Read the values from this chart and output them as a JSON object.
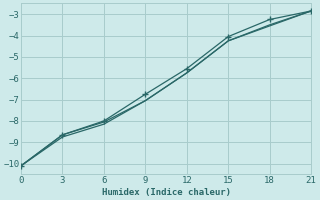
{
  "xlabel": "Humidex (Indice chaleur)",
  "background_color": "#ceeaea",
  "grid_color": "#a8cccc",
  "line_color": "#2a6868",
  "marker_color": "#2a6868",
  "xlim": [
    0,
    21
  ],
  "ylim": [
    -10.5,
    -2.5
  ],
  "xticks": [
    0,
    3,
    6,
    9,
    12,
    15,
    18,
    21
  ],
  "yticks": [
    -10,
    -9,
    -8,
    -7,
    -6,
    -5,
    -4,
    -3
  ],
  "line1_x": [
    0,
    3,
    6,
    9,
    12,
    15,
    18,
    21
  ],
  "line1_y": [
    -10.1,
    -8.65,
    -8.0,
    -6.75,
    -5.55,
    -4.05,
    -3.25,
    -2.85
  ],
  "line2_x": [
    0,
    3,
    6,
    9,
    12,
    15,
    18,
    21
  ],
  "line2_y": [
    -10.1,
    -8.75,
    -8.15,
    -7.05,
    -5.75,
    -4.25,
    -3.5,
    -2.85
  ],
  "line3_x": [
    0,
    3,
    6,
    9,
    12,
    15,
    18,
    21
  ],
  "line3_y": [
    -10.1,
    -8.65,
    -8.05,
    -7.05,
    -5.75,
    -4.25,
    -3.55,
    -2.85
  ]
}
